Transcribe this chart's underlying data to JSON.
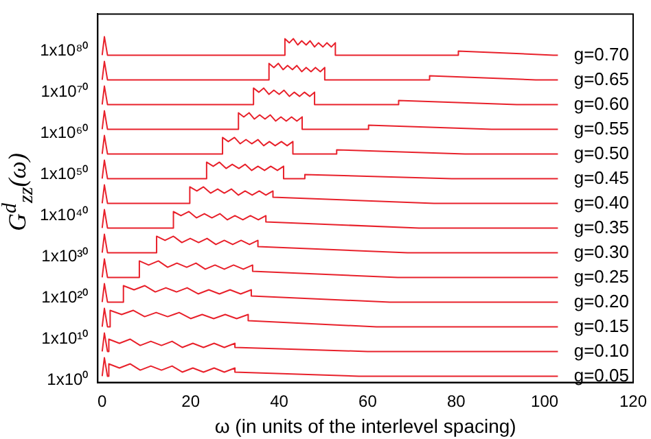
{
  "chart_data": {
    "type": "line",
    "xlabel": "ω (in units of the interlevel spacing)",
    "ylabel": "G$^{d}$$_{zz}$(ω)",
    "log": "y",
    "marker": "none",
    "xlim": [
      -1,
      120
    ],
    "xticks": [
      0,
      20,
      40,
      60,
      80,
      100,
      120
    ],
    "ylim": [
      0.3,
      1e+89
    ],
    "yticks": [
      {
        "value": 1,
        "label": "1x10⁰"
      },
      {
        "value": 10000000000.0,
        "label": "1x10¹⁰"
      },
      {
        "value": 1e+20,
        "label": "1x10²⁰"
      },
      {
        "value": 1e+30,
        "label": "1x10³⁰"
      },
      {
        "value": 1e+40,
        "label": "1x10⁴⁰"
      },
      {
        "value": 1e+50,
        "label": "1x10⁵⁰"
      },
      {
        "value": 1e+60,
        "label": "1x10⁶⁰"
      },
      {
        "value": 1e+70,
        "label": "1x10⁷⁰"
      },
      {
        "value": 1e+80,
        "label": "1x10⁸⁰"
      }
    ],
    "series": [
      {
        "name": "g=0.05",
        "color": "#e8202a",
        "x": [
          0,
          0.5,
          1.2,
          1.5,
          1.5,
          3.9,
          6.3,
          8.6,
          11,
          13.4,
          15.8,
          18.1,
          20.5,
          22.9,
          25.3,
          27.6,
          30,
          30,
          58,
          103
        ],
        "values": [
          10,
          300000.0,
          10,
          10,
          10000.0,
          1000.0,
          10000.0,
          300.0,
          3000.0,
          300.0,
          3000.0,
          100.0,
          1000.0,
          100.0,
          1000.0,
          100.0,
          1000.0,
          100.0,
          10,
          10
        ]
      },
      {
        "name": "g=0.10",
        "color": "#e8202a",
        "x": [
          0,
          0.5,
          1.2,
          1.5,
          1.5,
          3.9,
          6.3,
          8.6,
          11,
          13.4,
          15.8,
          18.1,
          20.5,
          22.9,
          25.3,
          27.6,
          30,
          30,
          60,
          103
        ],
        "values": [
          10000000.0,
          300000000000.0,
          10000000.0,
          10000000.0,
          10000000000.0,
          1000000000.0,
          10000000000.0,
          300000000.0,
          3000000000.0,
          300000000.0,
          3000000000.0,
          100000000.0,
          1000000000.0,
          100000000.0,
          1000000000.0,
          100000000.0,
          1000000000.0,
          100000000.0,
          10000000.0,
          10000000.0
        ]
      },
      {
        "name": "g=0.15",
        "color": "#e8202a",
        "x": [
          0,
          0.5,
          1.2,
          1.8,
          1.8,
          4.4,
          7,
          9.6,
          12.2,
          14.8,
          17.4,
          20,
          22.6,
          25.2,
          27.8,
          30.4,
          33,
          33,
          62,
          103
        ],
        "values": [
          10000000000000.0,
          3e+17,
          10000000000000.0,
          10000000000000.0,
          1e+17,
          1e+16,
          1e+17,
          3000000000000000.0,
          3e+16,
          3000000000000000.0,
          3e+16,
          1000000000000000.0,
          1e+16,
          1000000000000000.0,
          1e+16,
          1000000000000000.0,
          1e+16,
          300000000000000.0,
          10000000000000.0,
          10000000000000.0
        ]
      },
      {
        "name": "g=0.20",
        "color": "#e8202a",
        "x": [
          0,
          0.5,
          1.2,
          4.8,
          4.8,
          7.2,
          9.6,
          12,
          14.4,
          16.8,
          19.2,
          21.7,
          24.1,
          26.5,
          28.9,
          31.3,
          33.7,
          33.7,
          65,
          103
        ],
        "values": [
          1e+19,
          3e+23,
          1e+19,
          1e+19,
          1e+23,
          1e+22,
          1e+23,
          3e+21,
          3e+22,
          3e+21,
          3e+22,
          1e+21,
          1e+22,
          1e+21,
          1e+22,
          1e+21,
          1e+22,
          3e+20,
          1e+19,
          1e+19
        ]
      },
      {
        "name": "g=0.25",
        "color": "#e8202a",
        "x": [
          0,
          0.5,
          1.2,
          8.4,
          8.4,
          10.5,
          12.7,
          14.8,
          16.9,
          19.1,
          21.2,
          23.3,
          25.5,
          27.6,
          29.7,
          31.9,
          34,
          34,
          66.8,
          103
        ],
        "values": [
          1e+25,
          3e+29,
          1e+25,
          1e+25,
          1e+29,
          1e+28,
          1e+29,
          3e+27,
          3e+28,
          3e+27,
          3e+28,
          1e+27,
          1e+28,
          1e+27,
          1e+28,
          1e+27,
          1e+28,
          3e+26,
          1e+25,
          1e+25
        ]
      },
      {
        "name": "g=0.30",
        "color": "#e8202a",
        "x": [
          0,
          0.5,
          1.2,
          12.3,
          12.3,
          14.2,
          16.1,
          18,
          19.9,
          21.8,
          23.7,
          25.7,
          27.6,
          29.5,
          31.4,
          33.3,
          35.2,
          35.2,
          69,
          103
        ],
        "values": [
          1e+31,
          3e+35,
          1e+31,
          1e+31,
          1e+35,
          1e+34,
          1e+35,
          3e+33,
          3e+34,
          3e+33,
          3e+34,
          1e+33,
          1e+34,
          1e+33,
          1e+34,
          1e+33,
          1e+34,
          3e+32,
          1e+31,
          1e+31
        ]
      },
      {
        "name": "g=0.35",
        "color": "#e8202a",
        "x": [
          0,
          0.5,
          1.2,
          16.1,
          16.1,
          17.8,
          19.6,
          21.3,
          23.1,
          24.8,
          26.6,
          28.3,
          30,
          31.8,
          33.5,
          35.3,
          37,
          37,
          71.6,
          103
        ],
        "values": [
          1e+37,
          3e+41,
          1e+37,
          1e+37,
          1e+41,
          1e+40,
          1e+41,
          3e+39,
          3e+40,
          3e+39,
          3e+40,
          1e+39,
          1e+40,
          1e+39,
          1e+40,
          1e+39,
          1e+40,
          3e+38,
          1e+37,
          1e+37
        ]
      },
      {
        "name": "g=0.40",
        "color": "#e8202a",
        "x": [
          0,
          0.5,
          1.2,
          19.8,
          19.8,
          21.4,
          22.9,
          24.5,
          26.1,
          27.6,
          29.2,
          30.8,
          32.3,
          33.9,
          35.5,
          37,
          38.6,
          38.6,
          75,
          103
        ],
        "values": [
          1e+43,
          3e+47,
          1e+43,
          1e+43,
          1e+47,
          1e+46,
          1e+47,
          3e+45,
          3e+46,
          3e+45,
          3e+46,
          1e+45,
          1e+46,
          1e+45,
          1e+46,
          1e+45,
          1e+46,
          3e+44,
          1e+43,
          1e+43
        ]
      },
      {
        "name": "g=0.45",
        "color": "#e8202a",
        "x": [
          0,
          0.5,
          1.2,
          23.6,
          23.6,
          25.1,
          26.5,
          28,
          29.4,
          30.9,
          32.3,
          33.8,
          35.2,
          36.7,
          38.1,
          39.6,
          41,
          41,
          45.8,
          45.8,
          79,
          103
        ],
        "values": [
          1e+49,
          3e+53,
          1e+49,
          1e+49,
          1e+53,
          1e+52,
          1e+53,
          3e+51,
          3e+52,
          3e+51,
          3e+52,
          1e+51,
          1e+52,
          1e+51,
          1e+52,
          1e+51,
          1e+52,
          1e+49,
          1e+49,
          1e+50,
          1e+49,
          1e+49
        ]
      },
      {
        "name": "g=0.50",
        "color": "#e8202a",
        "x": [
          0,
          0.5,
          1.2,
          27.2,
          27.2,
          28.5,
          29.9,
          31.2,
          32.5,
          33.8,
          35.2,
          36.5,
          37.8,
          39.1,
          40.5,
          41.8,
          43.1,
          43.1,
          53,
          53,
          82,
          103
        ],
        "values": [
          1e+55,
          3e+59,
          1e+55,
          1e+55,
          1e+59,
          1e+58,
          1e+59,
          3e+57,
          3e+58,
          3e+57,
          3e+58,
          1e+57,
          1e+58,
          1e+57,
          1e+58,
          1e+57,
          1e+58,
          1e+55,
          1e+55,
          1e+56,
          1e+55,
          1e+55
        ]
      },
      {
        "name": "g=0.55",
        "color": "#e8202a",
        "x": [
          0,
          0.5,
          1.2,
          30.8,
          30.8,
          32,
          33.2,
          34.4,
          35.6,
          36.8,
          38,
          39.2,
          40.4,
          41.6,
          42.8,
          44,
          45.2,
          45.2,
          60.2,
          60.2,
          88,
          103
        ],
        "values": [
          1e+61,
          3e+65,
          1e+61,
          1e+61,
          1e+65,
          1e+64,
          1e+65,
          3e+63,
          3e+64,
          3e+63,
          3e+64,
          1e+63,
          1e+64,
          1e+63,
          1e+64,
          1e+63,
          1e+64,
          1e+61,
          1e+61,
          1e+62,
          1e+61,
          1e+61
        ]
      },
      {
        "name": "g=0.60",
        "color": "#e8202a",
        "x": [
          0,
          0.5,
          1.2,
          34.2,
          34.2,
          35.4,
          36.5,
          37.7,
          38.8,
          40,
          41.1,
          42.3,
          43.4,
          44.6,
          45.7,
          46.9,
          48,
          48,
          67,
          67,
          93.7,
          103
        ],
        "values": [
          1e+67,
          3e+71,
          1e+67,
          1e+67,
          1e+71,
          1e+70,
          1e+71,
          3e+69,
          3e+70,
          3e+69,
          3e+70,
          1e+69,
          1e+70,
          1e+69,
          1e+70,
          1e+69,
          1e+70,
          1e+67,
          1e+67,
          1e+68,
          1e+67,
          1e+67
        ]
      },
      {
        "name": "g=0.65",
        "color": "#e8202a",
        "x": [
          0,
          0.5,
          1.2,
          37.7,
          37.7,
          38.8,
          39.8,
          40.9,
          41.9,
          43,
          44,
          45.1,
          46.1,
          47.2,
          48.2,
          49.3,
          50.3,
          50.3,
          74,
          74,
          98,
          103
        ],
        "values": [
          1e+73,
          3e+77,
          1e+73,
          1e+73,
          1e+77,
          1e+76,
          1e+77,
          3e+75,
          3e+76,
          3e+75,
          3e+76,
          1e+75,
          1e+76,
          1e+75,
          1e+76,
          1e+75,
          1e+76,
          1e+73,
          1e+73,
          1e+74,
          1e+73,
          1e+73
        ]
      },
      {
        "name": "g=0.70",
        "color": "#e8202a",
        "x": [
          0,
          0.5,
          1.2,
          41.3,
          41.3,
          42.3,
          43.2,
          44.2,
          45.1,
          46.1,
          47,
          48,
          48.9,
          49.9,
          50.8,
          51.8,
          52.7,
          52.7,
          80.5,
          80.5,
          102,
          103
        ],
        "values": [
          1e+79,
          3e+83,
          1e+79,
          1e+79,
          1e+83,
          1e+82,
          1e+83,
          3e+81,
          3e+82,
          3e+81,
          3e+82,
          1e+81,
          1e+82,
          1e+81,
          1e+82,
          1e+81,
          1e+82,
          1e+79,
          1e+79,
          1e+80,
          1e+79,
          1e+79
        ]
      }
    ]
  }
}
